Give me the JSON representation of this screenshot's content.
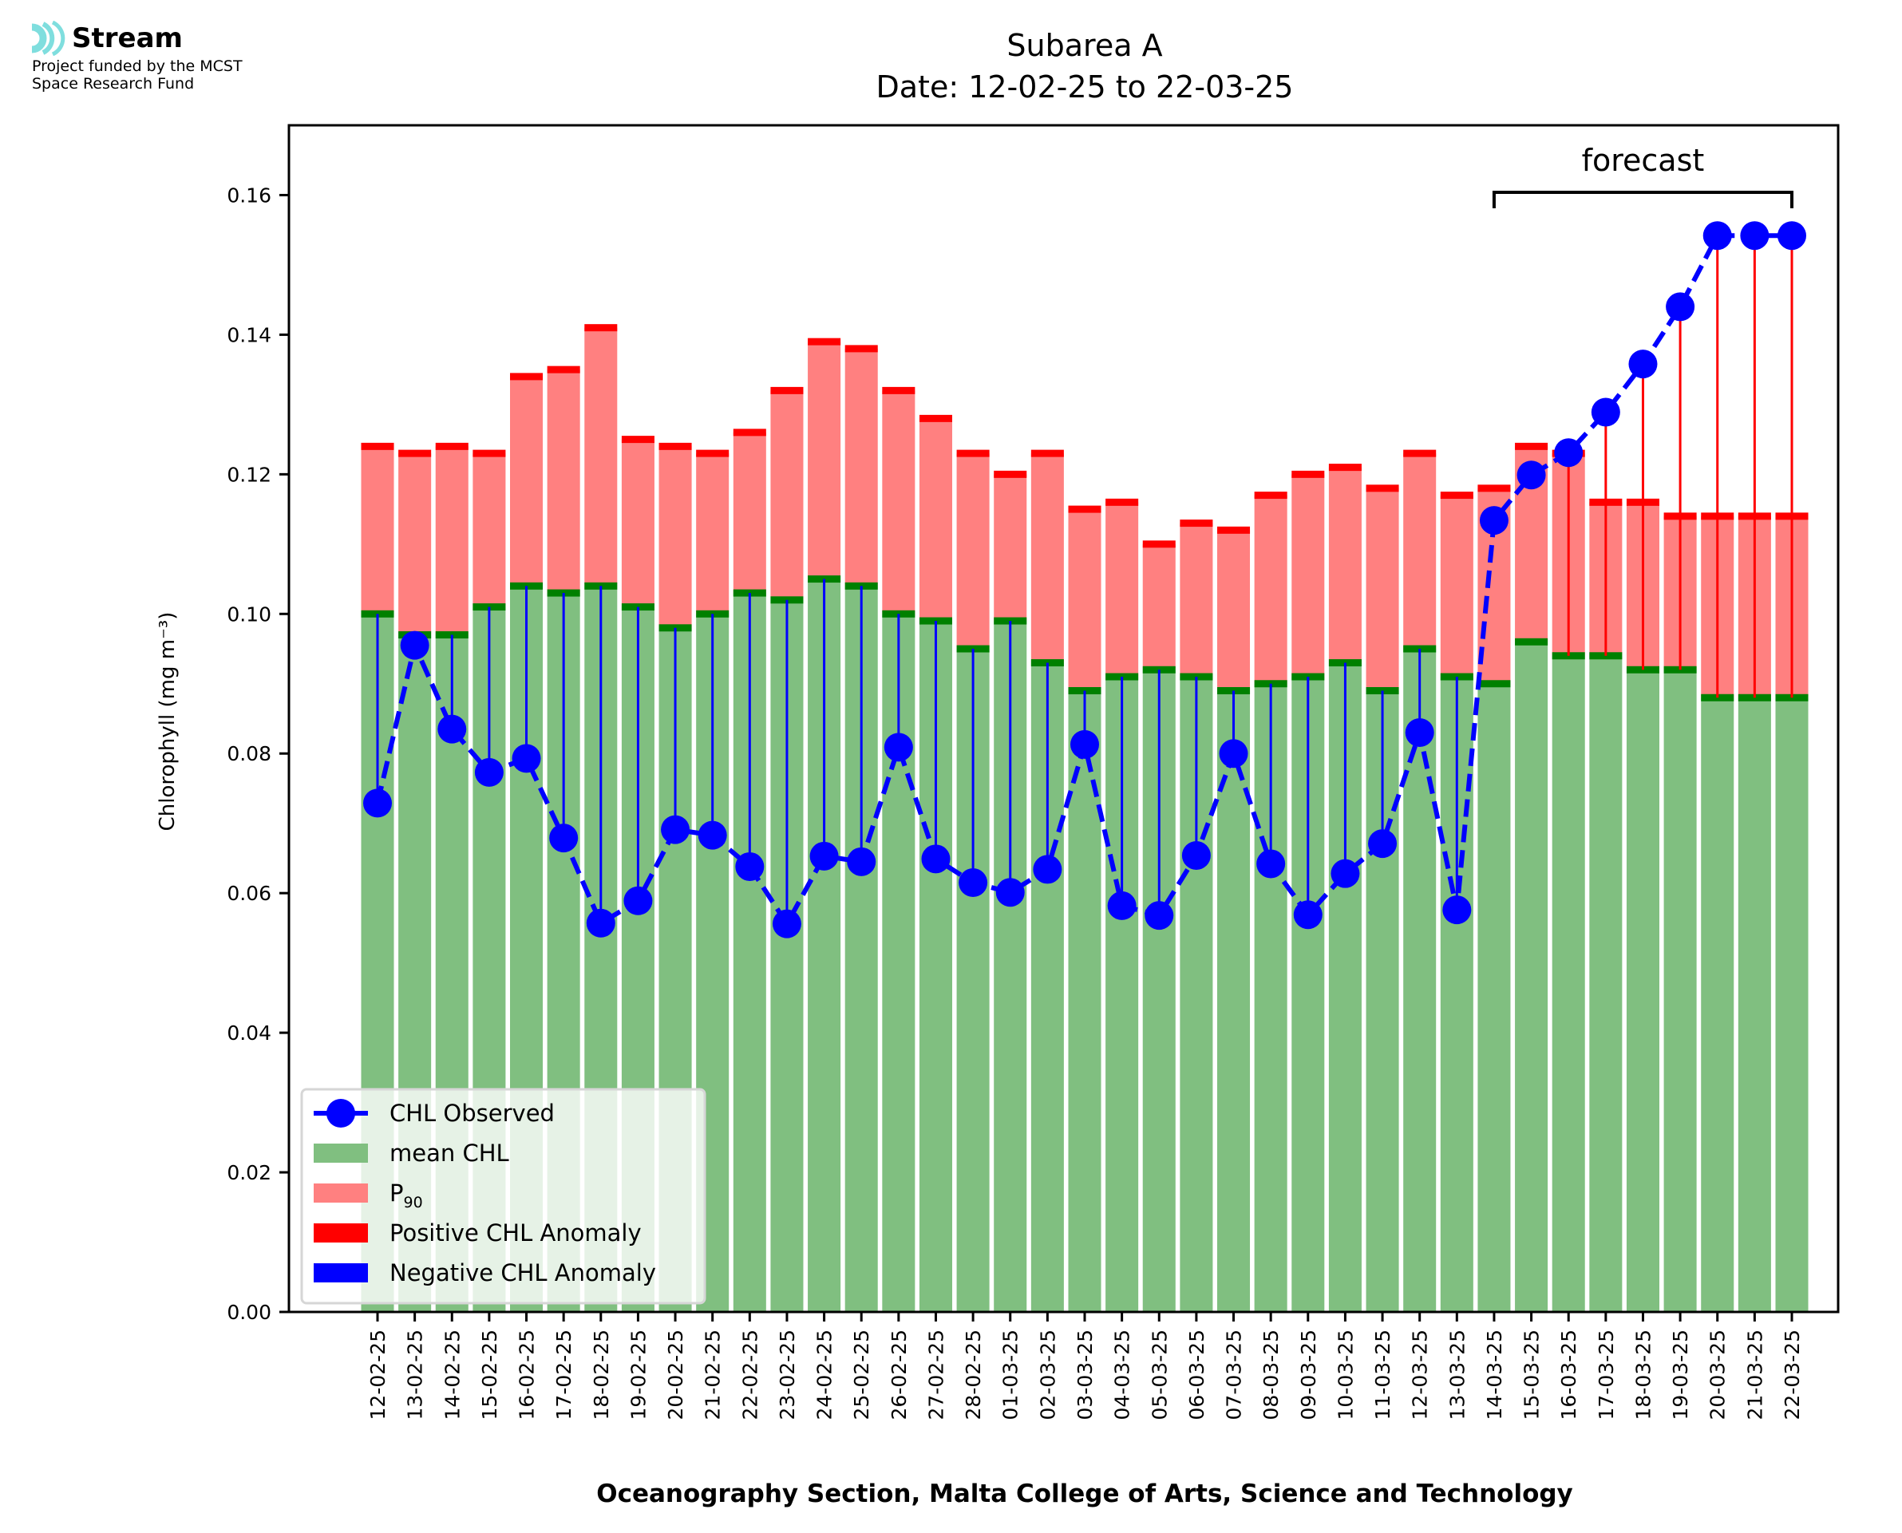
{
  "logo": {
    "name": "Stream",
    "subtitle_line1": "Project funded by the MCST",
    "subtitle_line2": "Space Research Fund",
    "accent_color": "#7fdede"
  },
  "chart_data": {
    "type": "bar",
    "title": "Subarea A",
    "subtitle": "Date: 12-02-25 to 22-03-25",
    "xlabel": "Oceanography Section, Malta College of Arts, Science and Technology",
    "ylabel": "Chlorophyll (mg m⁻³)",
    "ylim": [
      0,
      0.17
    ],
    "yticks": [
      "0.00",
      "0.02",
      "0.04",
      "0.06",
      "0.08",
      "0.10",
      "0.12",
      "0.14",
      "0.16"
    ],
    "ytick_values": [
      0,
      0.02,
      0.04,
      0.06,
      0.08,
      0.1,
      0.12,
      0.14,
      0.16
    ],
    "grid": false,
    "legend_position": "bottom-left",
    "annotation": {
      "text": "forecast",
      "from": "14-03-25",
      "to": "22-03-25"
    },
    "categories": [
      "12-02-25",
      "13-02-25",
      "14-02-25",
      "15-02-25",
      "16-02-25",
      "17-02-25",
      "18-02-25",
      "19-02-25",
      "20-02-25",
      "21-02-25",
      "22-02-25",
      "23-02-25",
      "24-02-25",
      "25-02-25",
      "26-02-25",
      "27-02-25",
      "28-02-25",
      "01-03-25",
      "02-03-25",
      "03-03-25",
      "04-03-25",
      "05-03-25",
      "06-03-25",
      "07-03-25",
      "08-03-25",
      "09-03-25",
      "10-03-25",
      "11-03-25",
      "12-03-25",
      "13-03-25",
      "14-03-25",
      "15-03-25",
      "16-03-25",
      "17-03-25",
      "18-03-25",
      "19-03-25",
      "20-03-25",
      "21-03-25",
      "22-03-25"
    ],
    "series": [
      {
        "name": "mean CHL",
        "kind": "bar",
        "color": "#80bf80",
        "values": [
          0.1,
          0.097,
          0.097,
          0.101,
          0.104,
          0.103,
          0.104,
          0.101,
          0.098,
          0.1,
          0.103,
          0.102,
          0.105,
          0.104,
          0.1,
          0.099,
          0.095,
          0.099,
          0.093,
          0.089,
          0.091,
          0.092,
          0.091,
          0.089,
          0.09,
          0.091,
          0.093,
          0.089,
          0.095,
          0.091,
          0.09,
          0.096,
          0.094,
          0.094,
          0.092,
          0.092,
          0.088,
          0.088,
          0.088
        ]
      },
      {
        "name": "P90",
        "kind": "bar",
        "color": "#ff8080",
        "values": [
          0.124,
          0.123,
          0.124,
          0.123,
          0.134,
          0.135,
          0.141,
          0.125,
          0.124,
          0.123,
          0.126,
          0.132,
          0.139,
          0.138,
          0.132,
          0.128,
          0.123,
          0.12,
          0.123,
          0.115,
          0.116,
          0.11,
          0.113,
          0.112,
          0.117,
          0.12,
          0.121,
          0.118,
          0.123,
          0.117,
          0.118,
          0.124,
          0.123,
          0.116,
          0.116,
          0.114,
          0.114,
          0.114,
          0.114
        ]
      },
      {
        "name": "CHL Observed",
        "kind": "line",
        "color": "#0000ff",
        "values": [
          0.0729,
          0.0955,
          0.0835,
          0.0773,
          0.0793,
          0.0679,
          0.0557,
          0.0589,
          0.0691,
          0.0683,
          0.0638,
          0.0556,
          0.0653,
          0.0645,
          0.0809,
          0.0649,
          0.0615,
          0.0601,
          0.0634,
          0.0813,
          0.0582,
          0.0568,
          0.0654,
          0.08,
          0.0642,
          0.0569,
          0.0628,
          0.0671,
          0.083,
          0.0576,
          0.1134,
          0.1199,
          0.1231,
          0.1289,
          0.1358,
          0.144,
          0.1542,
          0.1542,
          0.1542
        ]
      }
    ],
    "legend": [
      {
        "label": "CHL Observed",
        "kind": "line-marker",
        "color": "#0000ff"
      },
      {
        "label": "mean CHL",
        "kind": "patch",
        "color": "#80bf80"
      },
      {
        "label": "P",
        "sub": "90",
        "kind": "patch",
        "color": "#ff8080"
      },
      {
        "label": "Positive CHL Anomaly",
        "kind": "patch",
        "color": "#ff0000"
      },
      {
        "label": "Negative CHL Anomaly",
        "kind": "patch",
        "color": "#0000ff"
      }
    ],
    "colors": {
      "mean_edge": "#008000",
      "p90_edge": "#ff0000",
      "positive": "#ff0000",
      "negative": "#0000ff"
    }
  }
}
